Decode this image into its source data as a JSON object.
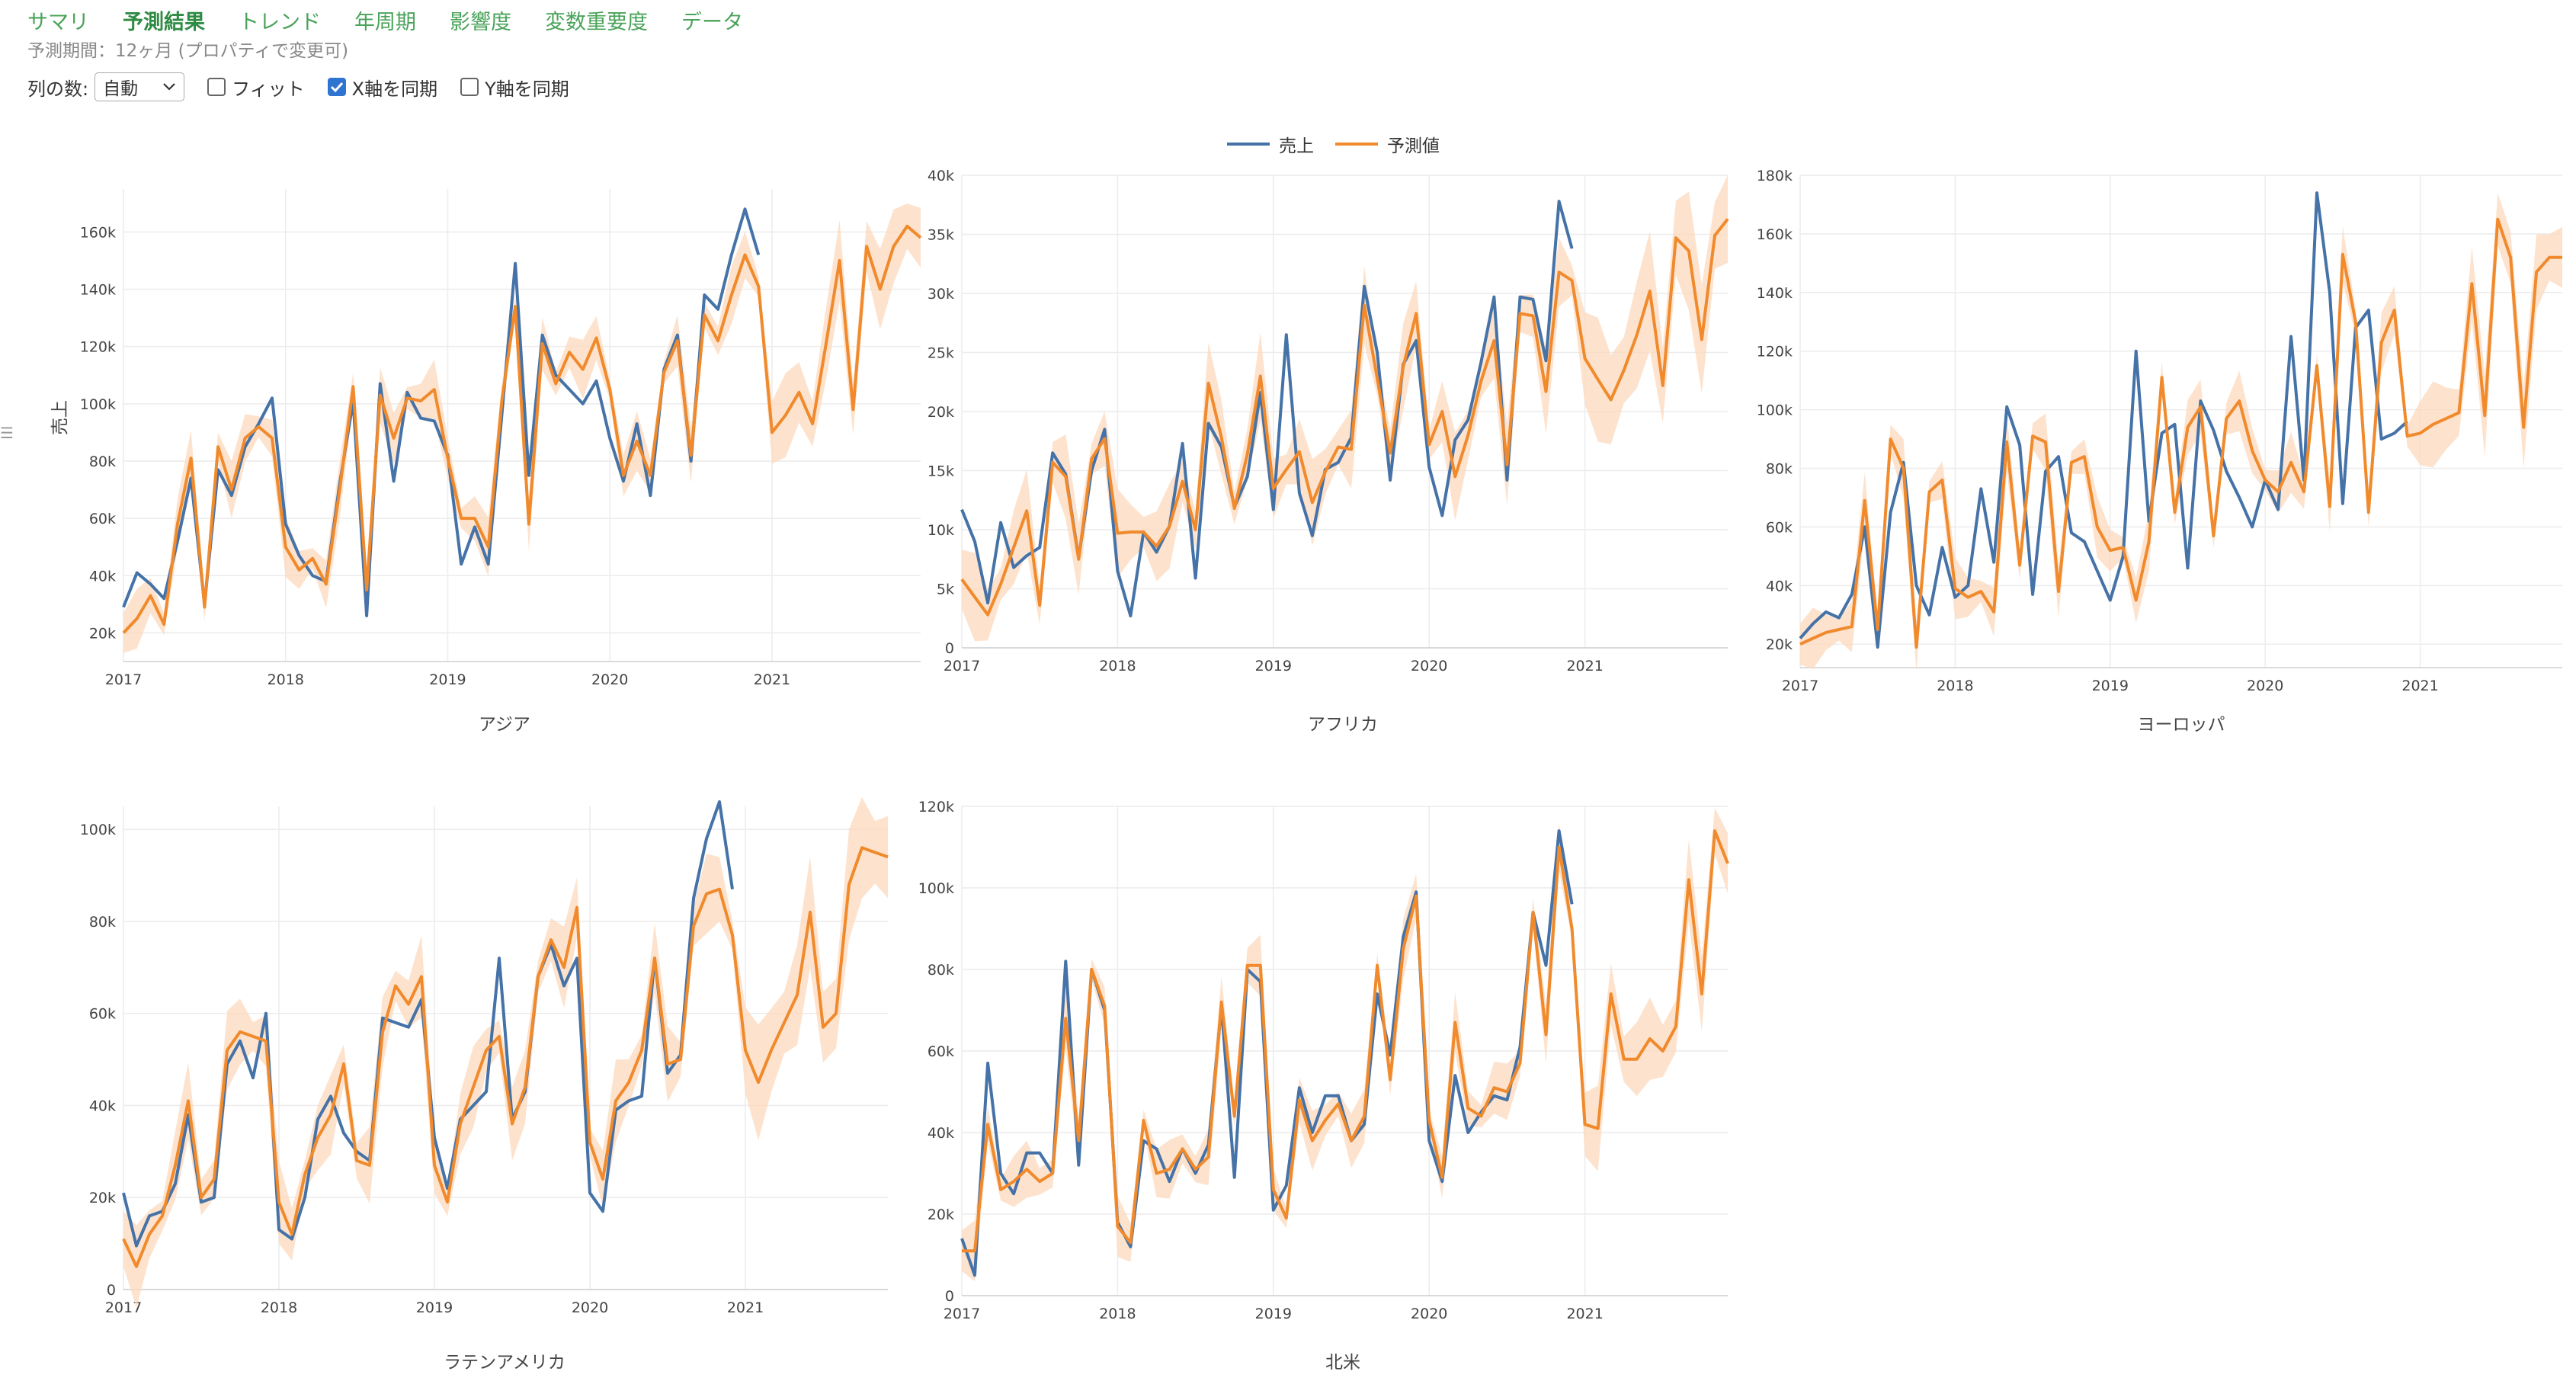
{
  "tabs": [
    {
      "label": "サマリ",
      "active": false
    },
    {
      "label": "予測結果",
      "active": true
    },
    {
      "label": "トレンド",
      "active": false
    },
    {
      "label": "年周期",
      "active": false
    },
    {
      "label": "影響度",
      "active": false
    },
    {
      "label": "変数重要度",
      "active": false
    },
    {
      "label": "データ",
      "active": false
    }
  ],
  "period_text": "予測期間：12ヶ月 (プロパティで変更可)",
  "controls": {
    "columns_label": "列の数:",
    "columns_value": "自動",
    "fit_label": "フィット",
    "fit_checked": false,
    "sync_x_label": "X軸を同期",
    "sync_x_checked": true,
    "sync_y_label": "Y軸を同期",
    "sync_y_checked": false
  },
  "icons": {
    "grid": "grid-icon",
    "dropdown": "chevron-down-icon"
  },
  "colors": {
    "actual": "#4572a7",
    "forecast": "#f08a2c",
    "band": "#fcd9bd"
  },
  "chart_data": {
    "type": "line",
    "legend": [
      "売上",
      "予測値"
    ],
    "legend_position": "top-center",
    "ylabel": "売上",
    "x_ticks": [
      "2017",
      "2018",
      "2019",
      "2020",
      "2021"
    ],
    "x_range": [
      "2017-01",
      "2021-12"
    ],
    "actual_range": [
      "2017-01",
      "2020-12"
    ],
    "panels": [
      {
        "title": "アジア",
        "ylim": [
          10000,
          175000
        ],
        "yticks": [
          20000,
          40000,
          60000,
          80000,
          100000,
          120000,
          140000,
          160000
        ],
        "ytick_labels": [
          "20k",
          "40k",
          "60k",
          "80k",
          "100k",
          "120k",
          "140k",
          "160k"
        ],
        "actual": [
          29000,
          41000,
          37000,
          32000,
          52000,
          74000,
          30000,
          77000,
          68000,
          85000,
          93000,
          102000,
          58000,
          47000,
          40000,
          38000,
          72000,
          101000,
          26000,
          107000,
          73000,
          104000,
          95000,
          94000,
          82000,
          44000,
          57000,
          44000,
          96000,
          149000,
          75000,
          124000,
          110000,
          105000,
          100000,
          108000,
          88000,
          73000,
          93000,
          68000,
          112000,
          124000,
          80000,
          138000,
          133000,
          152000,
          168000,
          152000
        ],
        "forecast": [
          20000,
          25000,
          33000,
          23000,
          58000,
          81000,
          29000,
          85000,
          70000,
          88000,
          92000,
          88000,
          50000,
          42000,
          46000,
          37000,
          70000,
          106000,
          35000,
          103000,
          88000,
          102000,
          101000,
          105000,
          81000,
          60000,
          60000,
          50000,
          101000,
          134000,
          58000,
          121000,
          107000,
          118000,
          112000,
          123000,
          105000,
          75000,
          87000,
          75000,
          111000,
          122000,
          82000,
          131000,
          122000,
          138000,
          152000,
          141000,
          90000,
          96000,
          104000,
          93000,
          121000,
          150000,
          98000,
          155000,
          140000,
          155000,
          162000,
          158000
        ],
        "band_half": 7000
      },
      {
        "title": "アフリカ",
        "ylim": [
          0,
          40000
        ],
        "yticks": [
          0,
          5000,
          10000,
          15000,
          20000,
          25000,
          30000,
          35000,
          40000
        ],
        "ytick_labels": [
          "0",
          "5k",
          "10k",
          "15k",
          "20k",
          "25k",
          "30k",
          "35k",
          "40k"
        ],
        "actual": [
          11700,
          9000,
          3800,
          10600,
          6800,
          7800,
          8500,
          16500,
          14700,
          7600,
          15000,
          18500,
          6500,
          2700,
          9800,
          8100,
          10300,
          17300,
          5900,
          19000,
          17000,
          11900,
          14500,
          21600,
          11700,
          26500,
          13100,
          9500,
          15100,
          15700,
          17800,
          30600,
          25000,
          14200,
          24000,
          26000,
          15300,
          11200,
          17600,
          19300,
          24200,
          29700,
          14200,
          29700,
          29500,
          24300,
          37800,
          33800
        ],
        "forecast": [
          5800,
          4300,
          2800,
          5400,
          8500,
          11600,
          3600,
          15700,
          14500,
          7500,
          16000,
          17700,
          9700,
          9800,
          9800,
          8600,
          10300,
          14100,
          10000,
          22400,
          17800,
          11800,
          16400,
          23000,
          13500,
          15100,
          16600,
          12300,
          14900,
          17000,
          16800,
          29000,
          22800,
          16500,
          23800,
          28300,
          17200,
          20000,
          14500,
          18000,
          22600,
          26000,
          15500,
          28300,
          28100,
          21700,
          31800,
          31100,
          24500,
          22700,
          21000,
          23500,
          26500,
          30200,
          22200,
          34700,
          33600,
          26100,
          34900,
          36300
        ],
        "band_half": 2500
      },
      {
        "title": "ヨーロッパ",
        "ylim": [
          12000,
          180000
        ],
        "yticks": [
          20000,
          40000,
          60000,
          80000,
          100000,
          120000,
          140000,
          160000,
          180000
        ],
        "ytick_labels": [
          "20k",
          "40k",
          "60k",
          "80k",
          "100k",
          "120k",
          "140k",
          "160k",
          "180k"
        ],
        "actual": [
          22000,
          27000,
          31000,
          29000,
          37000,
          60000,
          19000,
          65000,
          82000,
          40000,
          30000,
          53000,
          36000,
          40000,
          73000,
          48000,
          101000,
          88000,
          37000,
          79000,
          84000,
          58000,
          55000,
          45000,
          35000,
          50000,
          120000,
          62000,
          92000,
          95000,
          46000,
          103000,
          93000,
          79000,
          70000,
          60000,
          76000,
          66000,
          125000,
          76000,
          174000,
          140000,
          68000,
          128000,
          134000,
          90000,
          92000,
          96000
        ],
        "forecast": [
          20000,
          22000,
          24000,
          25000,
          26000,
          69000,
          25000,
          90000,
          80000,
          19000,
          72000,
          76000,
          39000,
          36000,
          38000,
          31000,
          89000,
          47000,
          91000,
          89000,
          38000,
          82000,
          84000,
          60000,
          52000,
          53000,
          35000,
          55000,
          111000,
          65000,
          94000,
          101000,
          57000,
          97000,
          103000,
          86000,
          76000,
          72000,
          82000,
          72000,
          115000,
          67000,
          153000,
          130000,
          65000,
          123000,
          134000,
          91000,
          92000,
          95000,
          97000,
          99000,
          143000,
          98000,
          165000,
          152000,
          94000,
          147000,
          152000,
          152000
        ],
        "band_half": 7000
      },
      {
        "title": "ラテンアメリカ",
        "ylim": [
          0,
          105000
        ],
        "yticks": [
          0,
          20000,
          40000,
          60000,
          80000,
          100000
        ],
        "ytick_labels": [
          "0",
          "20k",
          "40k",
          "60k",
          "80k",
          "100k"
        ],
        "actual": [
          21000,
          9500,
          16000,
          17000,
          23000,
          38000,
          19000,
          20000,
          49000,
          54000,
          46000,
          60000,
          13000,
          11000,
          20000,
          37000,
          42000,
          34000,
          30000,
          28000,
          59000,
          58000,
          57000,
          63000,
          33000,
          22000,
          37000,
          40000,
          43000,
          72000,
          37000,
          43000,
          68000,
          75000,
          66000,
          72000,
          21000,
          17000,
          39000,
          41000,
          42000,
          72000,
          47000,
          51000,
          85000,
          98000,
          106000,
          87000
        ],
        "forecast": [
          11000,
          5000,
          12000,
          16000,
          27000,
          41000,
          20000,
          24000,
          52000,
          56000,
          55000,
          54000,
          19000,
          12000,
          25000,
          33000,
          38000,
          49000,
          28000,
          27000,
          56000,
          66000,
          62000,
          68000,
          27000,
          19000,
          36000,
          44000,
          52000,
          55000,
          36000,
          44000,
          68000,
          76000,
          70000,
          83000,
          32000,
          24000,
          41000,
          45000,
          52000,
          72000,
          49000,
          50000,
          79000,
          86000,
          87000,
          77000,
          52000,
          45000,
          52000,
          58000,
          64000,
          82000,
          57000,
          60000,
          88000,
          96000,
          95000,
          94000
        ],
        "band_half": 6000
      },
      {
        "title": "北米",
        "ylim": [
          0,
          120000
        ],
        "yticks": [
          0,
          20000,
          40000,
          60000,
          80000,
          100000,
          120000
        ],
        "ytick_labels": [
          "0",
          "20k",
          "40k",
          "60k",
          "80k",
          "100k",
          "120k"
        ],
        "actual": [
          14000,
          5000,
          57000,
          30000,
          25000,
          35000,
          35000,
          30000,
          82000,
          32000,
          80000,
          70000,
          18000,
          12000,
          38000,
          36000,
          28000,
          36000,
          30000,
          37000,
          71000,
          29000,
          80000,
          77000,
          21000,
          27000,
          51000,
          40000,
          49000,
          49000,
          38000,
          42000,
          74000,
          59000,
          88000,
          99000,
          38000,
          28000,
          54000,
          40000,
          45000,
          49000,
          48000,
          61000,
          94000,
          81000,
          114000,
          96000
        ],
        "forecast": [
          11000,
          11000,
          42000,
          26000,
          28000,
          31000,
          28000,
          30000,
          68000,
          38000,
          80000,
          71000,
          17000,
          13000,
          43000,
          30000,
          31000,
          36000,
          31000,
          34000,
          72000,
          44000,
          81000,
          81000,
          26000,
          19000,
          48000,
          38000,
          43000,
          47000,
          38000,
          44000,
          81000,
          53000,
          85000,
          98000,
          43000,
          29000,
          67000,
          46000,
          44000,
          51000,
          50000,
          57000,
          94000,
          64000,
          110000,
          90000,
          42000,
          41000,
          74000,
          58000,
          58000,
          63000,
          60000,
          66000,
          102000,
          74000,
          114000,
          106000
        ],
        "band_half": 5000
      }
    ]
  }
}
